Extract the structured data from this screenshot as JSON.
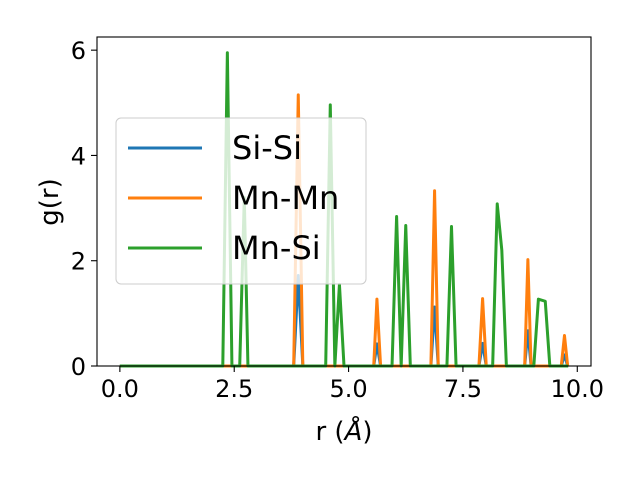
{
  "chart_data": {
    "type": "line",
    "title": "",
    "xlabel": "r (",
    "xlabel_unit": "Å",
    "xlabel_close": ")",
    "ylabel": "g(r)",
    "xlim": [
      -0.5,
      10.3
    ],
    "ylim": [
      0,
      6.25
    ],
    "xticks": [
      0.0,
      2.5,
      5.0,
      7.5,
      10.0
    ],
    "xtick_labels": [
      "0.0",
      "2.5",
      "5.0",
      "7.5",
      "10.0"
    ],
    "yticks": [
      0,
      2,
      4,
      6
    ],
    "ytick_labels": [
      "0",
      "2",
      "4",
      "6"
    ],
    "grid": false,
    "legend_position": "center-left",
    "series": [
      {
        "name": "Si-Si",
        "color": "#1f77b4",
        "x": [
          0,
          3.8,
          3.9,
          4.0,
          5.55,
          5.62,
          5.7,
          6.8,
          6.88,
          6.96,
          7.85,
          7.93,
          8.01,
          8.85,
          8.92,
          8.99,
          9.65,
          9.72,
          9.79,
          9.8
        ],
        "y": [
          0,
          0,
          1.72,
          0,
          0,
          0.42,
          0,
          0,
          1.12,
          0,
          0,
          0.43,
          0,
          0,
          0.67,
          0,
          0,
          0.21,
          0,
          0
        ]
      },
      {
        "name": "Mn-Mn",
        "color": "#ff7f0e",
        "x": [
          0,
          3.8,
          3.9,
          4.0,
          5.55,
          5.62,
          5.7,
          6.8,
          6.88,
          6.96,
          7.85,
          7.93,
          8.01,
          8.85,
          8.92,
          8.99,
          9.65,
          9.72,
          9.79,
          9.8
        ],
        "y": [
          0,
          0,
          5.15,
          0,
          0,
          1.27,
          0,
          0,
          3.33,
          0,
          0,
          1.28,
          0,
          0,
          2.02,
          0,
          0,
          0.58,
          0,
          0
        ]
      },
      {
        "name": "Mn-Si",
        "color": "#2ca02c",
        "x": [
          0,
          2.25,
          2.35,
          2.45,
          2.62,
          2.72,
          2.8,
          2.92,
          4.5,
          4.6,
          4.7,
          4.8,
          4.9,
          5.95,
          6.05,
          6.15,
          6.25,
          6.35,
          7.15,
          7.25,
          7.35,
          8.15,
          8.25,
          8.35,
          8.45,
          9.05,
          9.15,
          9.3,
          9.4,
          9.8
        ],
        "y": [
          0,
          0,
          5.95,
          0,
          0,
          3.2,
          0,
          0,
          0,
          4.96,
          0,
          1.55,
          0,
          0,
          2.84,
          0,
          2.67,
          0,
          0,
          2.65,
          0,
          0,
          3.08,
          2.2,
          0,
          0,
          1.27,
          1.23,
          0,
          0
        ]
      }
    ]
  }
}
